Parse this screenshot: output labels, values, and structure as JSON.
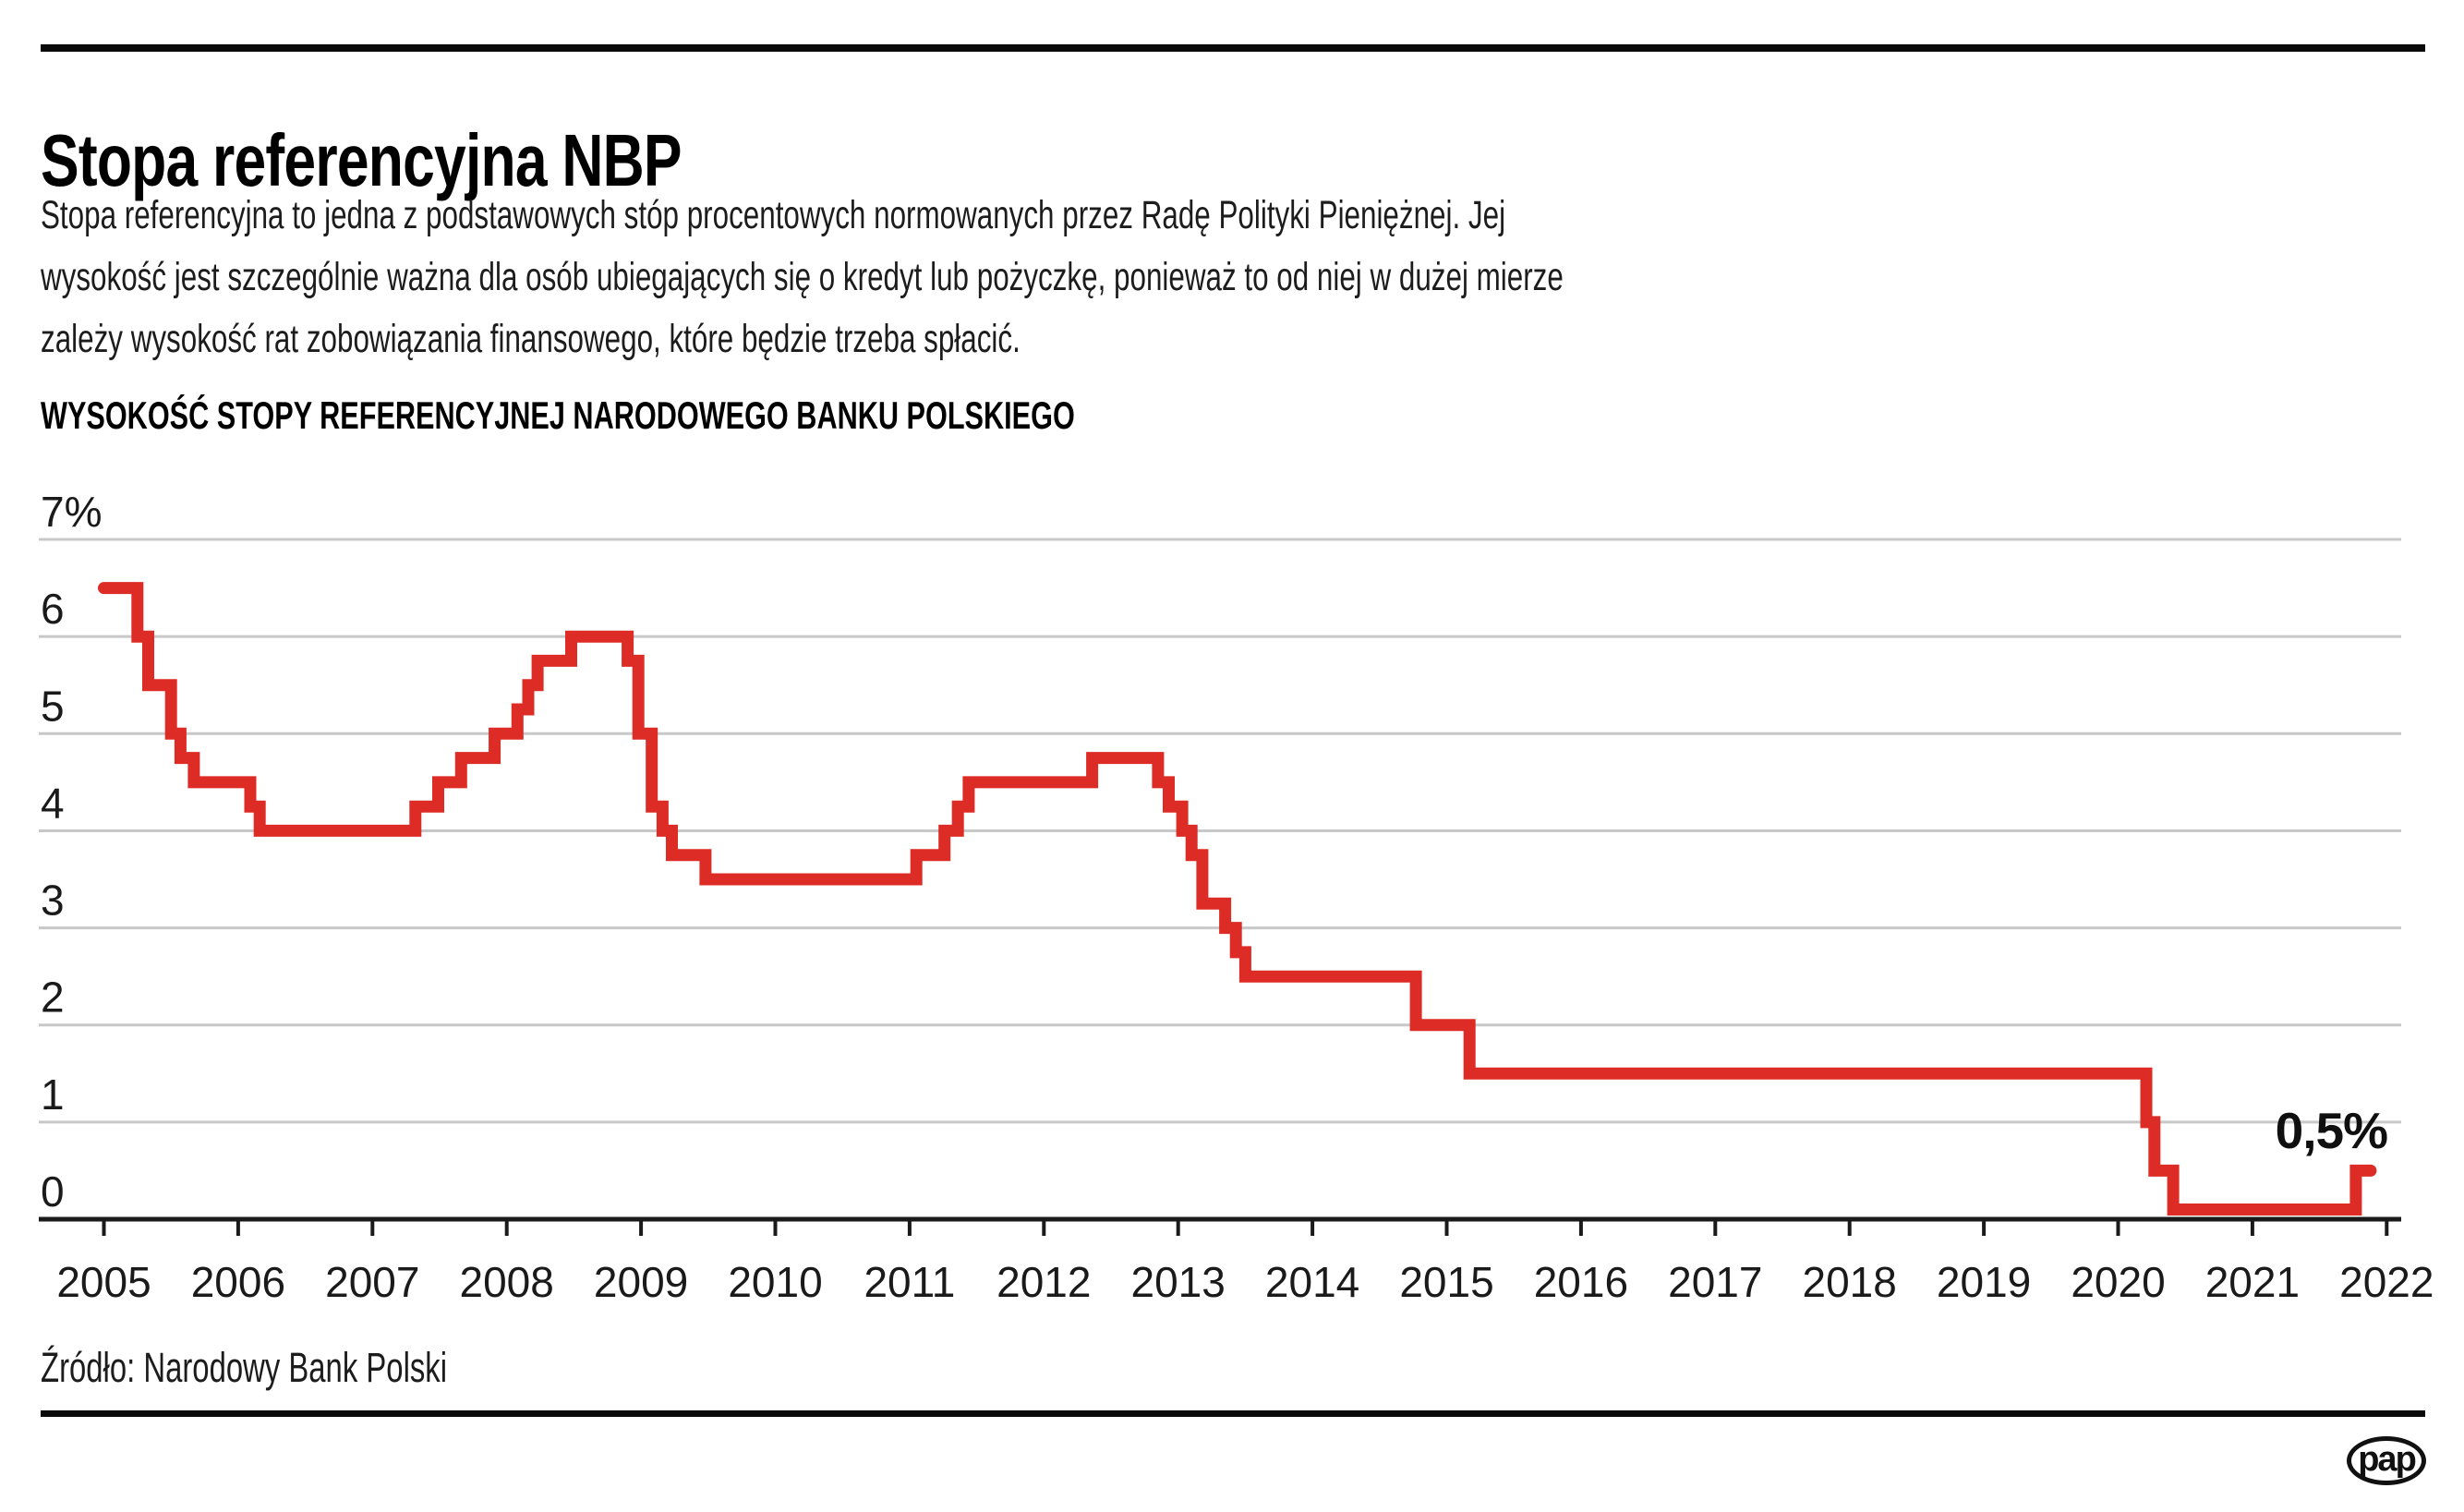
{
  "header": {
    "title": "Stopa referencyjna NBP",
    "intro_lines": [
      "Stopa referencyjna to jedna z podstawowych stóp procentowych normowanych przez Radę Polityki Pieniężnej. Jej",
      "wysokość jest szczególnie ważna dla osób ubiegających się o kredyt lub pożyczkę, ponieważ to od niej w dużej mierze",
      "zależy wysokość rat zobowiązania finansowego, które będzie trzeba spłacić."
    ]
  },
  "chart_data": {
    "type": "line",
    "subtype": "step-after",
    "title": "WYSOKOŚĆ STOPY REFERENCYJNEJ NARODOWEGO BANKU POLSKIEGO",
    "unit": "%",
    "xlabel": "",
    "ylabel": "",
    "xlim": [
      2005,
      2022
    ],
    "ylim": [
      0,
      7
    ],
    "grid": "horizontal",
    "legend": "none",
    "x_ticks": [
      "2005",
      "2006",
      "2007",
      "2008",
      "2009",
      "2010",
      "2011",
      "2012",
      "2013",
      "2014",
      "2015",
      "2016",
      "2017",
      "2018",
      "2019",
      "2020",
      "2021",
      "2022"
    ],
    "y_ticks": [
      {
        "value": 7,
        "label": "7%"
      },
      {
        "value": 6,
        "label": "6"
      },
      {
        "value": 5,
        "label": "5"
      },
      {
        "value": 4,
        "label": "4"
      },
      {
        "value": 3,
        "label": "3"
      },
      {
        "value": 2,
        "label": "2"
      },
      {
        "value": 1,
        "label": "1"
      },
      {
        "value": 0,
        "label": "0"
      }
    ],
    "series": [
      {
        "name": "Stopa referencyjna NBP",
        "color": "#dd2b26",
        "points": [
          [
            2005.0,
            6.5
          ],
          [
            2005.25,
            6.0
          ],
          [
            2005.33,
            5.5
          ],
          [
            2005.5,
            5.0
          ],
          [
            2005.57,
            4.75
          ],
          [
            2005.67,
            4.5
          ],
          [
            2006.09,
            4.25
          ],
          [
            2006.16,
            4.0
          ],
          [
            2007.32,
            4.25
          ],
          [
            2007.49,
            4.5
          ],
          [
            2007.66,
            4.75
          ],
          [
            2007.91,
            5.0
          ],
          [
            2008.08,
            5.25
          ],
          [
            2008.16,
            5.5
          ],
          [
            2008.23,
            5.75
          ],
          [
            2008.48,
            6.0
          ],
          [
            2008.9,
            5.75
          ],
          [
            2008.98,
            5.0
          ],
          [
            2009.08,
            4.25
          ],
          [
            2009.16,
            4.0
          ],
          [
            2009.23,
            3.75
          ],
          [
            2009.48,
            3.5
          ],
          [
            2011.05,
            3.75
          ],
          [
            2011.26,
            4.0
          ],
          [
            2011.36,
            4.25
          ],
          [
            2011.44,
            4.5
          ],
          [
            2012.36,
            4.75
          ],
          [
            2012.85,
            4.5
          ],
          [
            2012.93,
            4.25
          ],
          [
            2013.03,
            4.0
          ],
          [
            2013.1,
            3.75
          ],
          [
            2013.18,
            3.25
          ],
          [
            2013.35,
            3.0
          ],
          [
            2013.43,
            2.75
          ],
          [
            2013.5,
            2.5
          ],
          [
            2014.77,
            2.0
          ],
          [
            2015.17,
            1.5
          ],
          [
            2020.21,
            1.0
          ],
          [
            2020.27,
            0.5
          ],
          [
            2020.41,
            0.1
          ],
          [
            2021.77,
            0.5
          ]
        ],
        "end_year": 2021.88
      }
    ],
    "end_label": "0,5%",
    "end_value": 0.5
  },
  "footer": {
    "source": "Źródło: Narodowy Bank Polski",
    "logo": "pap"
  },
  "colors": {
    "accent": "#dd2b26",
    "grid": "#c8c8c8",
    "axis": "#1a1a1a",
    "text": "#1a1a1a"
  }
}
